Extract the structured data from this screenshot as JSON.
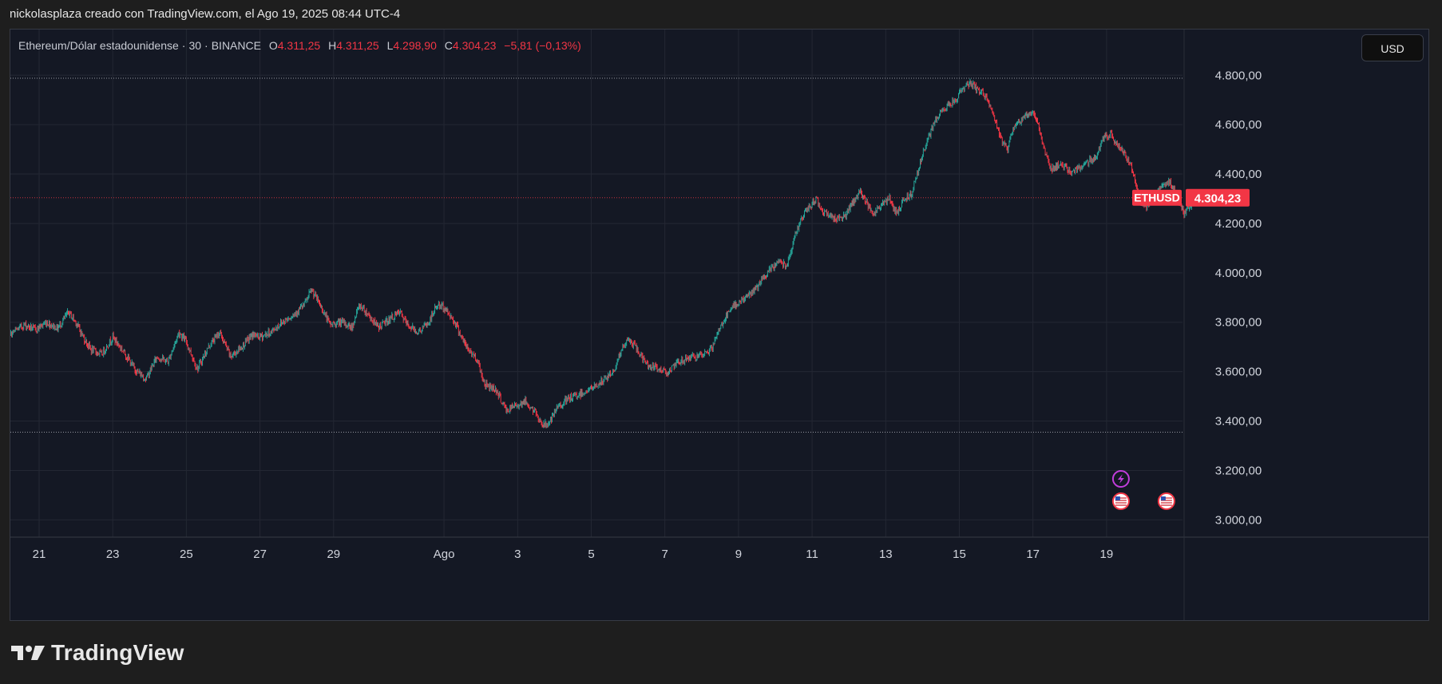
{
  "caption": "nickolasplaza creado con TradingView.com, el Ago 19, 2025 08:44 UTC-4",
  "legend": {
    "symbol": "Ethereum/Dólar estadounidense",
    "interval": "30",
    "exchange": "BINANCE",
    "open_label": "O",
    "open": "4.311,25",
    "high_label": "H",
    "high": "4.311,25",
    "low_label": "L",
    "low": "4.298,90",
    "close_label": "C",
    "close": "4.304,23",
    "change": "−5,81 (−0,13%)"
  },
  "currency_button": "USD",
  "price_tag": {
    "symbol": "ETHUSD",
    "value": "4.304,23"
  },
  "brand": {
    "name": "TradingView"
  },
  "colors": {
    "up": "#26a69a",
    "down": "#f23645",
    "background": "#141824",
    "grid": "#232733",
    "event_lightning": "#c13ddb",
    "event_flag_ring": "#f23645"
  },
  "events": [
    {
      "icon": "lightning-icon",
      "date": "19"
    },
    {
      "icon": "us-flag-icon",
      "date": "19"
    },
    {
      "icon": "us-flag-icon",
      "date": "20"
    }
  ],
  "chart_data": {
    "type": "candlestick",
    "timeframe": "30",
    "x_tick_labels": [
      "21",
      "23",
      "25",
      "27",
      "29",
      "Ago",
      "3",
      "5",
      "7",
      "9",
      "11",
      "13",
      "15",
      "17",
      "19"
    ],
    "y_tick_labels": [
      "4.800,00",
      "4.600,00",
      "4.400,00",
      "4.200,00",
      "4.000,00",
      "3.800,00",
      "3.600,00",
      "3.400,00",
      "3.200,00",
      "3.000,00"
    ],
    "y_ticks": [
      4800,
      4600,
      4400,
      4200,
      4000,
      3800,
      3600,
      3400,
      3200,
      3000
    ],
    "ylim": [
      2930,
      4985
    ],
    "last_price": 4304.23,
    "period_high": 4788,
    "period_low": 3355,
    "grid": true,
    "price_path": [
      [
        20.0,
        3720
      ],
      [
        20.3,
        3760
      ],
      [
        20.6,
        3790
      ],
      [
        20.9,
        3770
      ],
      [
        21.2,
        3800
      ],
      [
        21.5,
        3775
      ],
      [
        21.8,
        3840
      ],
      [
        22.0,
        3800
      ],
      [
        22.2,
        3740
      ],
      [
        22.4,
        3690
      ],
      [
        22.7,
        3670
      ],
      [
        23.0,
        3740
      ],
      [
        23.3,
        3680
      ],
      [
        23.6,
        3610
      ],
      [
        23.9,
        3570
      ],
      [
        24.2,
        3660
      ],
      [
        24.5,
        3640
      ],
      [
        24.8,
        3760
      ],
      [
        25.0,
        3720
      ],
      [
        25.3,
        3610
      ],
      [
        25.6,
        3700
      ],
      [
        25.9,
        3760
      ],
      [
        26.2,
        3660
      ],
      [
        26.5,
        3700
      ],
      [
        26.8,
        3750
      ],
      [
        27.0,
        3740
      ],
      [
        27.3,
        3760
      ],
      [
        27.6,
        3800
      ],
      [
        27.9,
        3830
      ],
      [
        28.2,
        3870
      ],
      [
        28.4,
        3930
      ],
      [
        28.6,
        3880
      ],
      [
        28.9,
        3790
      ],
      [
        29.2,
        3800
      ],
      [
        29.5,
        3780
      ],
      [
        29.7,
        3870
      ],
      [
        29.9,
        3840
      ],
      [
        30.2,
        3780
      ],
      [
        30.5,
        3810
      ],
      [
        30.8,
        3840
      ],
      [
        31.0,
        3790
      ],
      [
        31.3,
        3760
      ],
      [
        31.6,
        3800
      ],
      [
        31.8,
        3870
      ],
      [
        32.0,
        3860
      ],
      [
        32.3,
        3800
      ],
      [
        32.6,
        3700
      ],
      [
        32.9,
        3650
      ],
      [
        33.1,
        3550
      ],
      [
        33.4,
        3530
      ],
      [
        33.7,
        3440
      ],
      [
        33.9,
        3460
      ],
      [
        34.2,
        3480
      ],
      [
        34.5,
        3430
      ],
      [
        34.7,
        3380
      ],
      [
        34.9,
        3400
      ],
      [
        35.1,
        3460
      ],
      [
        35.4,
        3490
      ],
      [
        35.7,
        3510
      ],
      [
        36.0,
        3530
      ],
      [
        36.3,
        3560
      ],
      [
        36.6,
        3600
      ],
      [
        36.8,
        3680
      ],
      [
        37.0,
        3730
      ],
      [
        37.2,
        3700
      ],
      [
        37.5,
        3630
      ],
      [
        37.8,
        3610
      ],
      [
        38.1,
        3600
      ],
      [
        38.4,
        3640
      ],
      [
        38.7,
        3660
      ],
      [
        39.0,
        3660
      ],
      [
        39.3,
        3700
      ],
      [
        39.5,
        3780
      ],
      [
        39.7,
        3830
      ],
      [
        39.9,
        3870
      ],
      [
        40.2,
        3900
      ],
      [
        40.5,
        3940
      ],
      [
        40.8,
        4000
      ],
      [
        41.1,
        4050
      ],
      [
        41.3,
        4030
      ],
      [
        41.5,
        4130
      ],
      [
        41.7,
        4220
      ],
      [
        41.9,
        4260
      ],
      [
        42.1,
        4300
      ],
      [
        42.3,
        4250
      ],
      [
        42.6,
        4220
      ],
      [
        42.9,
        4230
      ],
      [
        43.1,
        4280
      ],
      [
        43.3,
        4330
      ],
      [
        43.5,
        4280
      ],
      [
        43.7,
        4240
      ],
      [
        43.9,
        4280
      ],
      [
        44.1,
        4300
      ],
      [
        44.3,
        4240
      ],
      [
        44.5,
        4300
      ],
      [
        44.7,
        4320
      ],
      [
        44.9,
        4430
      ],
      [
        45.1,
        4520
      ],
      [
        45.3,
        4600
      ],
      [
        45.5,
        4650
      ],
      [
        45.7,
        4680
      ],
      [
        45.9,
        4700
      ],
      [
        46.1,
        4750
      ],
      [
        46.3,
        4770
      ],
      [
        46.5,
        4740
      ],
      [
        46.7,
        4720
      ],
      [
        46.9,
        4650
      ],
      [
        47.1,
        4550
      ],
      [
        47.3,
        4500
      ],
      [
        47.5,
        4600
      ],
      [
        47.7,
        4620
      ],
      [
        47.9,
        4650
      ],
      [
        48.1,
        4630
      ],
      [
        48.3,
        4500
      ],
      [
        48.5,
        4420
      ],
      [
        48.7,
        4440
      ],
      [
        48.9,
        4420
      ],
      [
        49.1,
        4410
      ],
      [
        49.3,
        4430
      ],
      [
        49.5,
        4450
      ],
      [
        49.7,
        4470
      ],
      [
        49.9,
        4540
      ],
      [
        50.1,
        4560
      ],
      [
        50.3,
        4520
      ],
      [
        50.5,
        4480
      ],
      [
        50.7,
        4420
      ],
      [
        50.9,
        4300
      ],
      [
        51.1,
        4270
      ],
      [
        51.3,
        4310
      ],
      [
        51.5,
        4350
      ],
      [
        51.7,
        4370
      ],
      [
        51.9,
        4320
      ],
      [
        52.1,
        4240
      ],
      [
        52.3,
        4280
      ],
      [
        52.4,
        4304
      ]
    ]
  }
}
